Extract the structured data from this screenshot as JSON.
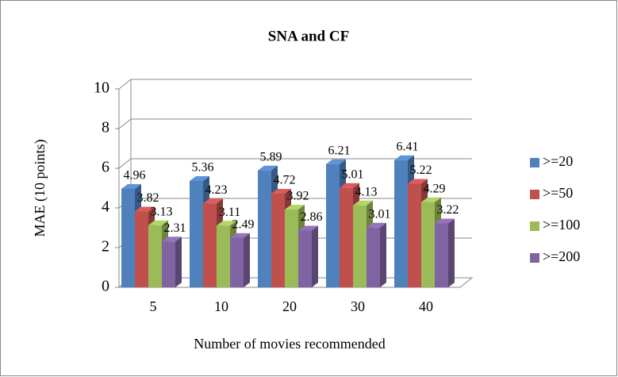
{
  "chart_data": {
    "type": "bar3d",
    "title": "SNA and CF",
    "x_label": "Number of movies recommended",
    "y_label": "MAE (10 points)",
    "categories": [
      "5",
      "10",
      "20",
      "30",
      "40"
    ],
    "series": [
      {
        "name": ">=20",
        "color": "#4f81bd",
        "values": [
          4.96,
          5.36,
          5.89,
          6.21,
          6.41
        ]
      },
      {
        "name": ">=50",
        "color": "#c0504d",
        "values": [
          3.82,
          4.23,
          4.72,
          5.01,
          5.22
        ]
      },
      {
        "name": ">=100",
        "color": "#9bbb59",
        "values": [
          3.13,
          3.11,
          3.92,
          4.13,
          4.29
        ]
      },
      {
        "name": ">=200",
        "color": "#8064a2",
        "values": [
          2.31,
          2.49,
          2.86,
          3.01,
          3.22
        ]
      }
    ],
    "ylim": [
      0,
      10
    ],
    "yticks": [
      0,
      2,
      4,
      6,
      8,
      10
    ],
    "grid": true,
    "legend": "right"
  }
}
